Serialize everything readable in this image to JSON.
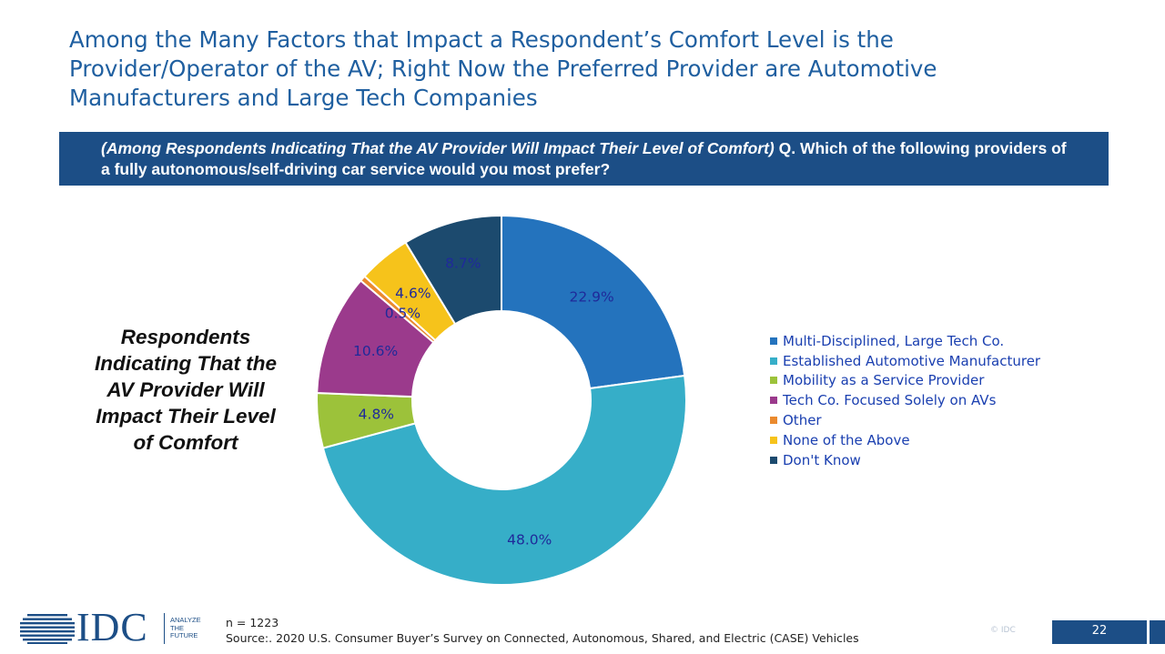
{
  "title": {
    "line1": "Among the Many Factors that Impact a Respondent’s Comfort Level is the",
    "line2": "Provider/Operator of the AV; Right Now the Preferred Provider are Automotive",
    "line3": "Manufacturers and Large Tech Companies"
  },
  "question": {
    "italic": "(Among Respondents Indicating That the AV Provider Will Impact Their Level of Comfort)",
    "text": " Q. Which of the following providers of a fully autonomous/self-driving car service would you most prefer?"
  },
  "side_label": "Respondents Indicating That the AV Provider Will Impact Their Level of Comfort",
  "chart_data": {
    "type": "pie",
    "variant": "donut",
    "title": "",
    "categories": [
      "Multi-Disciplined, Large Tech Co.",
      "Established Automotive Manufacturer",
      "Mobility as a Service Provider",
      "Tech Co. Focused Solely on AVs",
      "Other",
      "None of the Above",
      "Don't Know"
    ],
    "values": [
      22.9,
      48.0,
      4.8,
      10.6,
      0.5,
      4.6,
      8.7
    ],
    "labels": [
      "22.9%",
      "48.0%",
      "4.8%",
      "10.6%",
      "0.5%",
      "4.6%",
      "8.7%"
    ],
    "colors": [
      "#2473bd",
      "#36aec8",
      "#9cc23a",
      "#9b3a8c",
      "#ea8a2e",
      "#f6c31b",
      "#1c4a6e"
    ],
    "legend_position": "right"
  },
  "footer": {
    "logo_text": "IDC",
    "logo_tagline": [
      "ANALYZE",
      "THE",
      "FUTURE"
    ],
    "n": "n = 1223",
    "source": "Source:. 2020 U.S. Consumer Buyer’s Survey on Connected, Autonomous, Shared, and Electric (CASE) Vehicles",
    "copyright": "© IDC",
    "page_number": "22"
  }
}
